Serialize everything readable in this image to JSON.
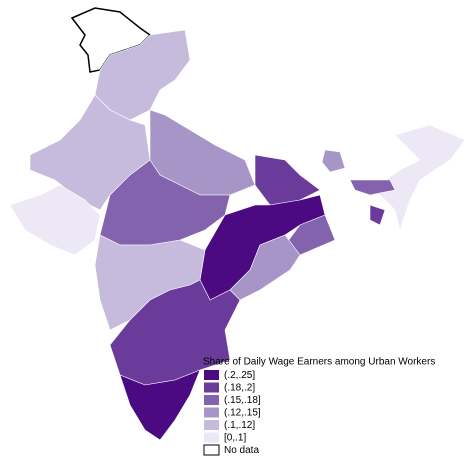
{
  "legend": {
    "title": "Share of Daily Wage Earners among Urban Workers",
    "items": [
      {
        "label": "(.2,.25]",
        "color": "#4b0a82"
      },
      {
        "label": "(.18,.2]",
        "color": "#6b3b9b"
      },
      {
        "label": "(.15,.18]",
        "color": "#8463ae"
      },
      {
        "label": "(.12,.15]",
        "color": "#a895c8"
      },
      {
        "label": "(.1,.12]",
        "color": "#c6bbdd"
      },
      {
        "label": "[0,.1]",
        "color": "#ece8f5"
      },
      {
        "label": "No data",
        "color": "#ffffff"
      }
    ]
  }
}
